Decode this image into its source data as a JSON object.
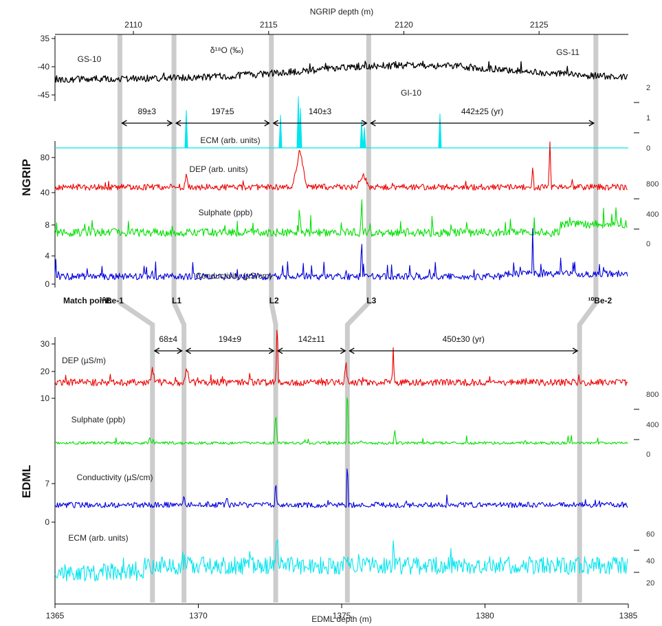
{
  "chart_data": {
    "type": "line",
    "top_axis": {
      "label": "NGRIP depth (m)",
      "ticks": [
        2110,
        2115,
        2120,
        2125
      ],
      "range": [
        2107.1,
        2128.3
      ]
    },
    "bottom_axis": {
      "label": "EDML depth (m)",
      "ticks": [
        1365,
        1370,
        1375,
        1380,
        1385
      ],
      "range": [
        1365,
        1385
      ]
    },
    "panel_labels": {
      "ngrip": "NGRIP",
      "edml": "EDML"
    },
    "ngrip": {
      "d18o": {
        "label": "δ¹⁸O (‰)",
        "yticks": [
          35,
          40,
          45
        ],
        "tick_labels": [
          "35",
          "-40",
          "-45"
        ],
        "color": "#000000"
      },
      "ecm": {
        "label": "ECM (arb. units)",
        "right_ticks": [
          "2",
          "1",
          "0"
        ],
        "color": "#00e5ee"
      },
      "dep": {
        "label": "DEP (arb. units)",
        "yticks": [
          40,
          80
        ],
        "color": "#ee0000"
      },
      "sulphate": {
        "label": "Sulphate (ppb)",
        "yticks": [
          8
        ],
        "right_ticks": [
          "800",
          "400",
          "0"
        ],
        "color": "#00e000"
      },
      "conductivity": {
        "label": "Conductivity (µS/cm)",
        "yticks": [
          0,
          4
        ],
        "color": "#0000dd"
      },
      "intervals": [
        "89±3",
        "197±5",
        "140±3",
        "442±25 (yr)"
      ],
      "annotations": [
        "GS-10",
        "GS-11",
        "GI-10"
      ]
    },
    "edml": {
      "dep": {
        "label": "DEP (µS/m)",
        "yticks": [
          10,
          20,
          30
        ],
        "color": "#ee0000"
      },
      "sulphate": {
        "label": "Sulphate (ppb)",
        "right_ticks": [
          "800",
          "400",
          "0"
        ],
        "color": "#00e000"
      },
      "conductivity": {
        "label": "Conductivity (µS/cm)",
        "yticks": [
          0,
          7
        ],
        "color": "#0000dd"
      },
      "ecm": {
        "label": "ECM (arb. units)",
        "right_ticks": [
          "60",
          "40",
          "20"
        ],
        "color": "#00e5ee"
      },
      "intervals": [
        "68±4",
        "194±9",
        "142±11",
        "450±30 (yr)"
      ]
    },
    "match_points": {
      "title": "Match point:",
      "names": [
        "¹⁰Be-1",
        "L1",
        "L2",
        "L3",
        "¹⁰Be-2"
      ],
      "ngrip_depth_m": [
        2109.5,
        2111.5,
        2115.1,
        2118.7,
        2127.1
      ],
      "edml_depth_m": [
        1368.4,
        1369.5,
        1372.7,
        1375.2,
        1383.3
      ]
    }
  }
}
